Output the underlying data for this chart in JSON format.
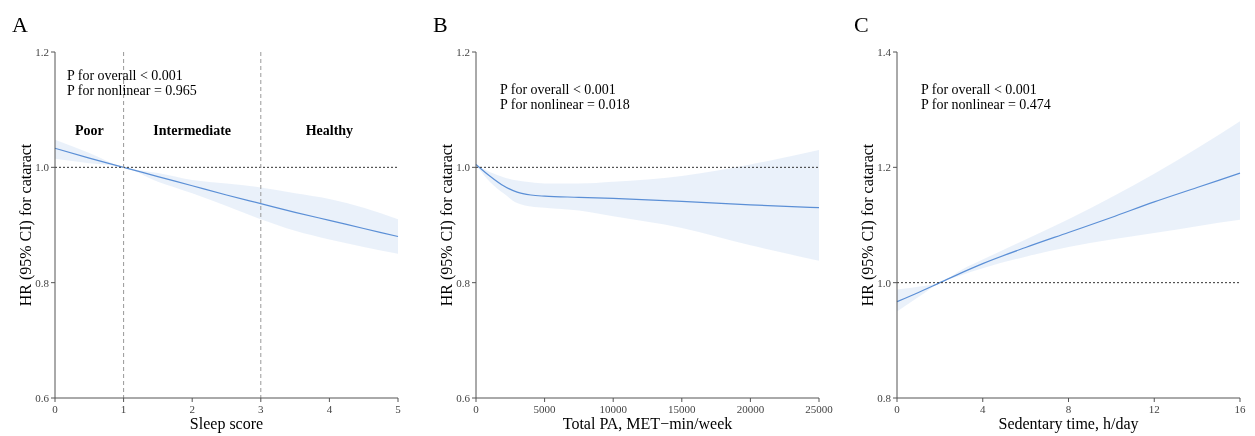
{
  "chart_data": [
    {
      "type": "line",
      "title": "A",
      "xlabel": "Sleep score",
      "ylabel": "HR (95% CI) for cataract",
      "xlim": [
        0,
        5
      ],
      "xticks": [
        0,
        1,
        2,
        3,
        4,
        5
      ],
      "ylim": [
        0.6,
        1.2
      ],
      "yticks": [
        {
          "value": 0.6,
          "label": "0.6"
        },
        {
          "value": 0.8,
          "label": "0.8"
        },
        {
          "value": 1,
          "label": "1.0"
        },
        {
          "value": 1.2,
          "label": "1.2"
        }
      ],
      "grid": false,
      "series": [
        {
          "color": "#5b8fd6",
          "x": [
            0,
            0.5,
            1,
            1.5,
            2,
            2.5,
            3,
            3.5,
            4,
            4.5,
            5
          ],
          "values": [
            1.033,
            1.016,
            1.0,
            0.984,
            0.968,
            0.952,
            0.937,
            0.922,
            0.908,
            0.894,
            0.88
          ],
          "lower": [
            1.015,
            1.007,
            1.0,
            0.975,
            0.955,
            0.933,
            0.91,
            0.89,
            0.875,
            0.862,
            0.85
          ],
          "upper": [
            1.048,
            1.025,
            1.0,
            0.99,
            0.978,
            0.972,
            0.965,
            0.955,
            0.945,
            0.93,
            0.91
          ]
        }
      ],
      "ref_lines": [
        {
          "axis": "y",
          "value": 1,
          "color": "#333333",
          "line_style": "dotted"
        },
        {
          "axis": "x",
          "value": 1,
          "color": "#999999",
          "line_style": "dashed"
        },
        {
          "axis": "x",
          "value": 3,
          "color": "#999999",
          "line_style": "dashed"
        }
      ],
      "annotations": [
        "P for overall < 0.001",
        "P for nonlinear = 0.965",
        "Poor",
        "Intermediate",
        "Healthy"
      ]
    },
    {
      "type": "line",
      "title": "B",
      "xlabel": "Total PA, MET−min/week",
      "ylabel": "HR (95% CI) for cataract",
      "xlim": [
        0,
        25000
      ],
      "xticks": [
        0,
        5000,
        10000,
        15000,
        20000,
        25000
      ],
      "ylim": [
        0.6,
        1.2
      ],
      "yticks": [
        {
          "value": 0.6,
          "label": "0.6"
        },
        {
          "value": 0.8,
          "label": "0.8"
        },
        {
          "value": 1,
          "label": "1.0"
        },
        {
          "value": 1.2,
          "label": "1.2"
        }
      ],
      "grid": false,
      "series": [
        {
          "color": "#5b8fd6",
          "x": [
            0,
            1000,
            2000,
            3000,
            4000,
            5000,
            7500,
            10000,
            15000,
            20000,
            25000
          ],
          "values": [
            1.005,
            0.985,
            0.968,
            0.957,
            0.952,
            0.95,
            0.948,
            0.946,
            0.941,
            0.935,
            0.93
          ],
          "lower": [
            1.005,
            0.975,
            0.955,
            0.938,
            0.932,
            0.93,
            0.925,
            0.915,
            0.895,
            0.865,
            0.838
          ],
          "upper": [
            1.005,
            0.992,
            0.983,
            0.977,
            0.974,
            0.972,
            0.972,
            0.975,
            0.985,
            1.005,
            1.03
          ]
        }
      ],
      "ref_lines": [
        {
          "axis": "y",
          "value": 1,
          "color": "#333333",
          "line_style": "dotted"
        }
      ],
      "annotations": [
        "P for overall < 0.001",
        "P for nonlinear = 0.018"
      ]
    },
    {
      "type": "line",
      "title": "C",
      "xlabel": "Sedentary time, h/day",
      "ylabel": "HR (95% CI) for cataract",
      "xlim": [
        0,
        16
      ],
      "xticks": [
        0,
        4,
        8,
        12,
        16
      ],
      "ylim": [
        0.8,
        1.4
      ],
      "yticks": [
        {
          "value": 0.8,
          "label": "0.8"
        },
        {
          "value": 1,
          "label": "1.0"
        },
        {
          "value": 1.2,
          "label": "1.2"
        },
        {
          "value": 1.4,
          "label": "1.4"
        }
      ],
      "grid": false,
      "series": [
        {
          "color": "#5b8fd6",
          "x": [
            0,
            1,
            2,
            3,
            4,
            6,
            8,
            10,
            12,
            14,
            16
          ],
          "values": [
            0.967,
            0.983,
            1.0,
            1.017,
            1.033,
            1.061,
            1.087,
            1.113,
            1.14,
            1.165,
            1.19
          ],
          "lower": [
            0.95,
            0.975,
            1.0,
            1.013,
            1.025,
            1.045,
            1.062,
            1.075,
            1.086,
            1.098,
            1.109
          ],
          "upper": [
            0.988,
            0.993,
            1.0,
            1.022,
            1.04,
            1.075,
            1.11,
            1.148,
            1.189,
            1.233,
            1.28
          ]
        }
      ],
      "ref_lines": [
        {
          "axis": "y",
          "value": 1,
          "color": "#333333",
          "line_style": "dotted"
        }
      ],
      "annotations": [
        "P for overall < 0.001",
        "P for nonlinear = 0.474"
      ]
    }
  ]
}
